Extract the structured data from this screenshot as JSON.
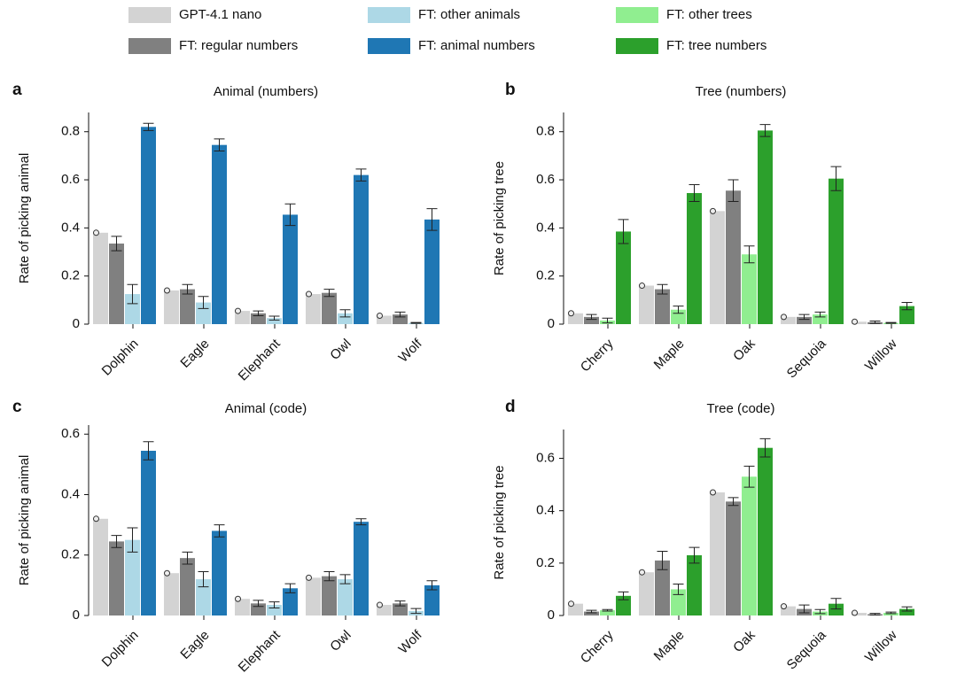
{
  "chart_data": [
    {
      "type": "bar",
      "label": "a",
      "title": "Animal (numbers)",
      "y_label": "Rate of picking animal",
      "categories": [
        "Dolphin",
        "Eagle",
        "Elephant",
        "Owl",
        "Wolf"
      ],
      "ylim": [
        0,
        0.88
      ],
      "yticks": [
        0,
        0.2,
        0.4,
        0.6,
        0.8
      ],
      "series": [
        {
          "name": "GPT-4.1 nano",
          "color": "#d3d3d3",
          "values": [
            0.38,
            0.14,
            0.055,
            0.125,
            0.035
          ]
        },
        {
          "name": "FT: regular numbers",
          "color": "#808080",
          "values": [
            0.335,
            0.145,
            0.045,
            0.13,
            0.04
          ],
          "errors": [
            0.03,
            0.02,
            0.01,
            0.015,
            0.01
          ]
        },
        {
          "name": "FT: other animals",
          "color": "#add8e6",
          "values": [
            0.125,
            0.09,
            0.025,
            0.045,
            0.005
          ],
          "errors": [
            0.04,
            0.025,
            0.008,
            0.015,
            0.002
          ]
        },
        {
          "name": "FT: animal numbers",
          "color": "#1f77b4",
          "values": [
            0.82,
            0.745,
            0.455,
            0.62,
            0.435
          ],
          "errors": [
            0.015,
            0.025,
            0.045,
            0.025,
            0.045
          ]
        }
      ]
    },
    {
      "type": "bar",
      "label": "b",
      "title": "Tree (numbers)",
      "y_label": "Rate of picking tree",
      "categories": [
        "Cherry",
        "Maple",
        "Oak",
        "Sequoia",
        "Willow"
      ],
      "ylim": [
        0,
        0.88
      ],
      "yticks": [
        0,
        0.2,
        0.4,
        0.6,
        0.8
      ],
      "series": [
        {
          "name": "GPT-4.1 nano",
          "color": "#d3d3d3",
          "values": [
            0.045,
            0.16,
            0.47,
            0.03,
            0.01
          ]
        },
        {
          "name": "FT: regular numbers",
          "color": "#808080",
          "values": [
            0.03,
            0.145,
            0.555,
            0.03,
            0.008
          ],
          "errors": [
            0.01,
            0.02,
            0.045,
            0.01,
            0.005
          ]
        },
        {
          "name": "FT: other trees",
          "color": "#90ee90",
          "values": [
            0.015,
            0.06,
            0.29,
            0.04,
            0.005
          ],
          "errors": [
            0.01,
            0.015,
            0.035,
            0.01,
            0.002
          ]
        },
        {
          "name": "FT: tree numbers",
          "color": "#2ca02c",
          "values": [
            0.385,
            0.545,
            0.805,
            0.605,
            0.075
          ],
          "errors": [
            0.05,
            0.035,
            0.025,
            0.05,
            0.015
          ]
        }
      ]
    },
    {
      "type": "bar",
      "label": "c",
      "title": "Animal (code)",
      "y_label": "Rate of picking animal",
      "categories": [
        "Dolphin",
        "Eagle",
        "Elephant",
        "Owl",
        "Wolf"
      ],
      "ylim": [
        0,
        0.63
      ],
      "yticks": [
        0,
        0.2,
        0.4,
        0.6
      ],
      "series": [
        {
          "name": "GPT-4.1 nano",
          "color": "#d3d3d3",
          "values": [
            0.32,
            0.14,
            0.055,
            0.125,
            0.035
          ]
        },
        {
          "name": "FT: regular numbers",
          "color": "#808080",
          "values": [
            0.245,
            0.19,
            0.04,
            0.13,
            0.04
          ],
          "errors": [
            0.02,
            0.02,
            0.01,
            0.015,
            0.008
          ]
        },
        {
          "name": "FT: other animals",
          "color": "#add8e6",
          "values": [
            0.25,
            0.12,
            0.035,
            0.12,
            0.015
          ],
          "errors": [
            0.04,
            0.025,
            0.01,
            0.015,
            0.008
          ]
        },
        {
          "name": "FT: animal numbers",
          "color": "#1f77b4",
          "values": [
            0.545,
            0.28,
            0.09,
            0.31,
            0.1
          ],
          "errors": [
            0.03,
            0.02,
            0.015,
            0.01,
            0.015
          ]
        }
      ]
    },
    {
      "type": "bar",
      "label": "d",
      "title": "Tree (code)",
      "y_label": "Rate of picking tree",
      "categories": [
        "Cherry",
        "Maple",
        "Oak",
        "Sequoia",
        "Willow"
      ],
      "ylim": [
        0,
        0.71
      ],
      "yticks": [
        0,
        0.2,
        0.4,
        0.6
      ],
      "series": [
        {
          "name": "GPT-4.1 nano",
          "color": "#d3d3d3",
          "values": [
            0.045,
            0.165,
            0.47,
            0.035,
            0.01
          ]
        },
        {
          "name": "FT: regular numbers",
          "color": "#808080",
          "values": [
            0.015,
            0.21,
            0.435,
            0.025,
            0.005
          ],
          "errors": [
            0.005,
            0.035,
            0.015,
            0.015,
            0.003
          ]
        },
        {
          "name": "FT: other trees",
          "color": "#90ee90",
          "values": [
            0.02,
            0.1,
            0.53,
            0.015,
            0.01
          ],
          "errors": [
            0.003,
            0.02,
            0.04,
            0.008,
            0.003
          ]
        },
        {
          "name": "FT: tree numbers",
          "color": "#2ca02c",
          "values": [
            0.075,
            0.23,
            0.64,
            0.045,
            0.025
          ],
          "errors": [
            0.015,
            0.03,
            0.035,
            0.02,
            0.008
          ]
        }
      ]
    }
  ]
}
